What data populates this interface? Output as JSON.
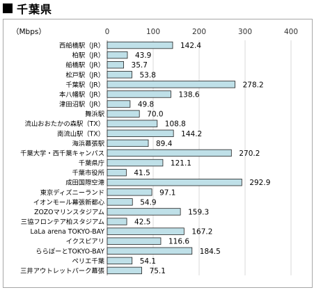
{
  "header": {
    "title": "千葉県"
  },
  "chart_data": {
    "type": "bar",
    "orientation": "horizontal",
    "unit_label": "（Mbps）",
    "xlim": [
      0,
      400
    ],
    "ticks": [
      "0",
      "100",
      "200",
      "300",
      "400"
    ],
    "tick_values": [
      0,
      100,
      200,
      300,
      400
    ],
    "grid": true,
    "bar_color": "#bfe0e8",
    "bar_stroke": "#1f1f1f",
    "categories": [
      "西船橋駅（JR）",
      "柏駅（JR）",
      "船橋駅（JR）",
      "松戸駅（JR）",
      "千葉駅（JR）",
      "本八幡駅（JR）",
      "津田沼駅（JR）",
      "舞浜駅",
      "流山おおたかの森駅（TX）",
      "南流山駅（TX）",
      "海浜幕張駅",
      "千葉大学・西千葉キャンパス",
      "千葉県庁",
      "千葉市役所",
      "成田国際空港",
      "東京ディズニーランド",
      "イオンモール幕張新都心",
      "ZOZOマリンスタジアム",
      "三協フロンテア柏スタジアム",
      "LaLa arena TOKYO-BAY",
      "イクスピアリ",
      "ららぽーとTOKYO-BAY",
      "ペリエ千葉",
      "三井アウトレットパーク幕張"
    ],
    "values": [
      142.4,
      43.9,
      35.7,
      53.8,
      278.2,
      138.6,
      49.8,
      70.0,
      108.8,
      144.2,
      89.4,
      270.2,
      121.1,
      41.5,
      292.9,
      97.1,
      54.9,
      159.3,
      42.5,
      167.2,
      116.6,
      184.5,
      54.1,
      75.1
    ],
    "value_labels": [
      "142.4",
      "43.9",
      "35.7",
      "53.8",
      "278.2",
      "138.6",
      "49.8",
      "70.0",
      "108.8",
      "144.2",
      "89.4",
      "270.2",
      "121.1",
      "41.5",
      "292.9",
      "97.1",
      "54.9",
      "159.3",
      "42.5",
      "167.2",
      "116.6",
      "184.5",
      "54.1",
      "75.1"
    ]
  }
}
